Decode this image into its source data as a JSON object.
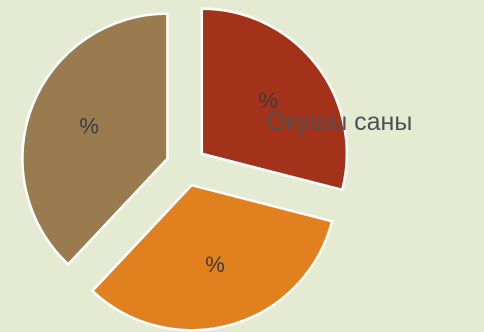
{
  "chart_data": {
    "type": "pie",
    "exploded": true,
    "title": "",
    "legend": [
      "Окушы саны"
    ],
    "legend_position": "right",
    "slices": [
      {
        "value": 29,
        "label": "%",
        "color": "#a2331a"
      },
      {
        "value": 33,
        "label": "%",
        "color": "#e0801e"
      },
      {
        "value": 38,
        "label": "%",
        "color": "#9a7b50"
      }
    ]
  }
}
